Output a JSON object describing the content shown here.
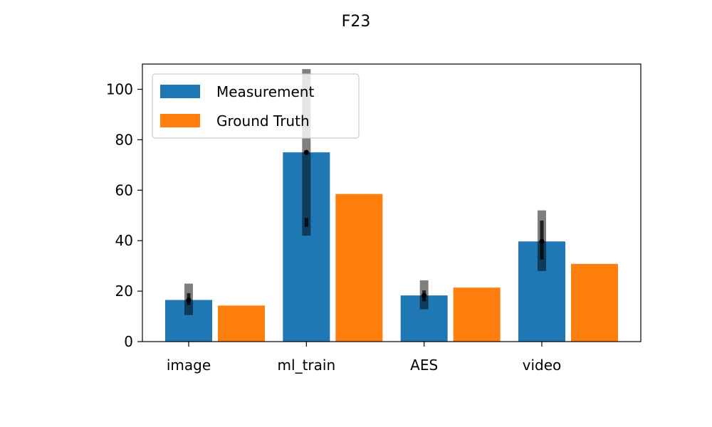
{
  "chart_data": {
    "type": "bar",
    "title": "F23",
    "xlabel": "",
    "ylabel": "",
    "categories": [
      "image",
      "ml_train",
      "AES",
      "video"
    ],
    "ylim": [
      0,
      110
    ],
    "yticks": [
      0,
      20,
      40,
      60,
      80,
      100
    ],
    "grid": false,
    "legend_position": "upper-left",
    "series": [
      {
        "name": "Measurement",
        "color": "#1f77b4",
        "values": [
          16.5,
          75.0,
          18.3,
          39.7
        ],
        "error_outer": [
          [
            10.5,
            23.0
          ],
          [
            42.0,
            108.0
          ],
          [
            12.8,
            24.3
          ],
          [
            28.0,
            52.0
          ]
        ],
        "error_inner": [
          [
            14.5,
            19.2
          ],
          [
            45.5,
            49.0
          ],
          [
            16.0,
            20.3
          ],
          [
            32.5,
            48.0
          ]
        ]
      },
      {
        "name": "Ground Truth",
        "color": "#ff7f0e",
        "values": [
          14.3,
          58.5,
          21.4,
          30.8
        ]
      }
    ],
    "errorbar_color": "#000000"
  }
}
